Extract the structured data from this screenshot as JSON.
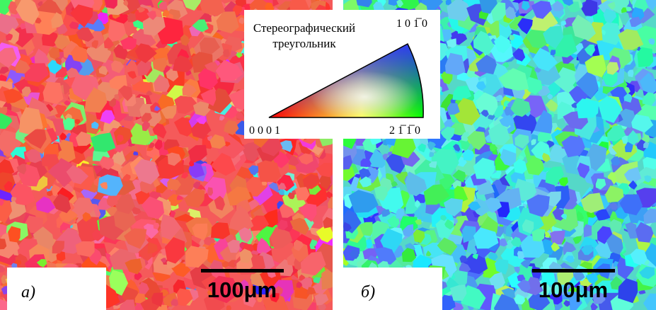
{
  "inset": {
    "title_lines": [
      "Стереографический",
      "треугольник"
    ],
    "corner_top": "1 0 1̅ 0",
    "corner_left": "0 0 0 1",
    "corner_right": "2 1̅ 1̅ 0"
  },
  "panels": [
    {
      "label": "а)",
      "scale_bar": "100μm"
    },
    {
      "label": "б)",
      "scale_bar": "100μm"
    }
  ]
}
